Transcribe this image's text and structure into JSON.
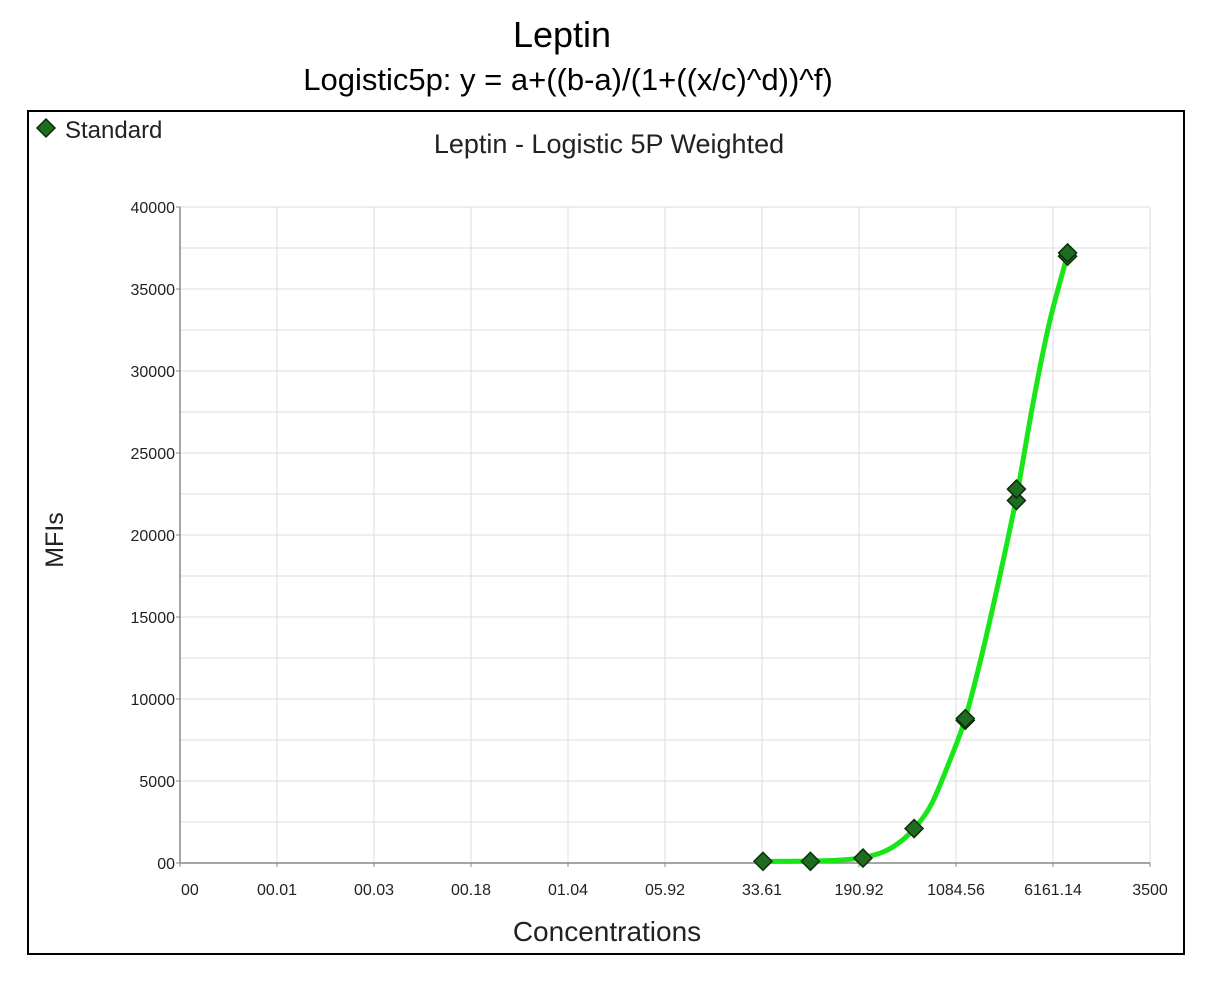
{
  "page": {
    "title": "Leptin",
    "subtitle": "Logistic5p: y = a+((b-a)/(1+((x/c)^d))^f)"
  },
  "chart_data": {
    "type": "scatter",
    "title": "Leptin - Logistic 5P Weighted",
    "xlabel": "Concentrations",
    "ylabel": "MFIs",
    "x_scale": "log",
    "x_tick_labels": [
      "00",
      "00.01",
      "00.03",
      "00.18",
      "01.04",
      "05.92",
      "33.61",
      "190.92",
      "1084.56",
      "6161.14",
      "3500"
    ],
    "y_ticks": [
      "00",
      "5000",
      "10000",
      "15000",
      "20000",
      "25000",
      "30000",
      "35000",
      "40000"
    ],
    "ylim": [
      0,
      40000
    ],
    "grid": true,
    "legend": {
      "position": "top-left",
      "entries": [
        "Standard"
      ]
    },
    "colors": {
      "marker_fill": "#1f6b1f",
      "marker_edge": "#0b2e0b",
      "curve": "#19e619",
      "grid": "#dcdcdc"
    },
    "series": [
      {
        "name": "Standard",
        "marker": "diamond",
        "points": [
          {
            "x": 34.2,
            "y": 100
          },
          {
            "x": 80,
            "y": 100
          },
          {
            "x": 205,
            "y": 300
          },
          {
            "x": 512,
            "y": 2100
          },
          {
            "x": 1280,
            "y": 8700
          },
          {
            "x": 1280,
            "y": 8800
          },
          {
            "x": 3200,
            "y": 22100
          },
          {
            "x": 3200,
            "y": 22800
          },
          {
            "x": 8000,
            "y": 37000
          },
          {
            "x": 8000,
            "y": 37200
          }
        ]
      }
    ],
    "curve": {
      "points": [
        {
          "x": 34,
          "y": 100
        },
        {
          "x": 80,
          "y": 120
        },
        {
          "x": 140,
          "y": 180
        },
        {
          "x": 205,
          "y": 330
        },
        {
          "x": 300,
          "y": 700
        },
        {
          "x": 400,
          "y": 1300
        },
        {
          "x": 512,
          "y": 2100
        },
        {
          "x": 700,
          "y": 3600
        },
        {
          "x": 1000,
          "y": 6500
        },
        {
          "x": 1280,
          "y": 8800
        },
        {
          "x": 1700,
          "y": 12500
        },
        {
          "x": 2300,
          "y": 17000
        },
        {
          "x": 3200,
          "y": 22300
        },
        {
          "x": 4300,
          "y": 28000
        },
        {
          "x": 5800,
          "y": 33000
        },
        {
          "x": 8000,
          "y": 37100
        }
      ]
    }
  }
}
